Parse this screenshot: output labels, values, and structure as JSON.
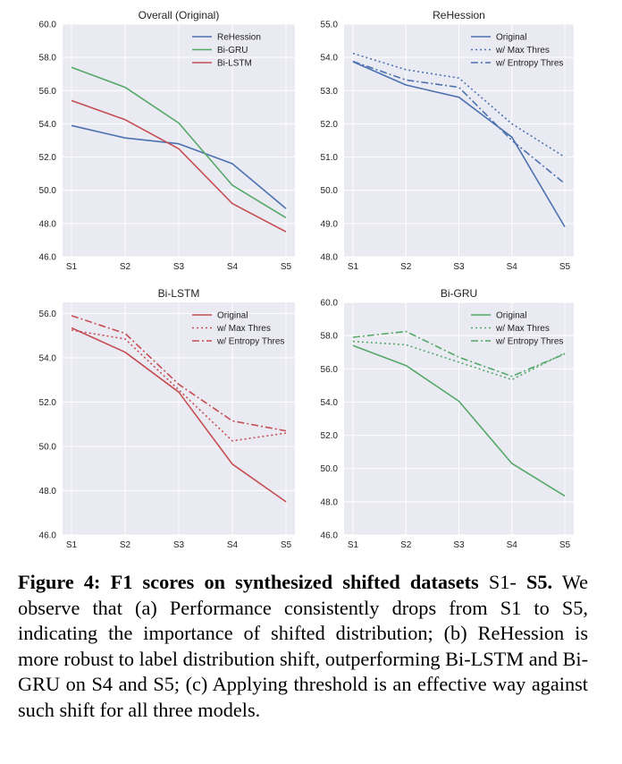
{
  "chart_data": [
    {
      "type": "line",
      "title": "Overall (Original)",
      "categories": [
        "S1",
        "S2",
        "S3",
        "S4",
        "S5"
      ],
      "ylim": [
        46.0,
        60.0
      ],
      "yticks": [
        "46.0",
        "48.0",
        "50.0",
        "52.0",
        "54.0",
        "56.0",
        "58.0",
        "60.0"
      ],
      "grid": true,
      "legend_position": "top-right",
      "series": [
        {
          "name": "ReHession",
          "color": "#4C72B0",
          "dash": "solid",
          "values": [
            53.9,
            53.15,
            52.8,
            51.6,
            48.9
          ]
        },
        {
          "name": "Bi-GRU",
          "color": "#55A868",
          "dash": "solid",
          "values": [
            57.4,
            56.2,
            54.05,
            50.3,
            48.35
          ]
        },
        {
          "name": "Bi-LSTM",
          "color": "#C44E52",
          "dash": "solid",
          "values": [
            55.4,
            54.25,
            52.5,
            49.2,
            47.5
          ]
        }
      ]
    },
    {
      "type": "line",
      "title": "ReHession",
      "categories": [
        "S1",
        "S2",
        "S3",
        "S4",
        "S5"
      ],
      "ylim": [
        48.0,
        55.0
      ],
      "yticks": [
        "48.0",
        "49.0",
        "50.0",
        "51.0",
        "52.0",
        "53.0",
        "54.0",
        "55.0"
      ],
      "grid": true,
      "legend_position": "top-right",
      "series": [
        {
          "name": "Original",
          "color": "#4C72B0",
          "dash": "solid",
          "values": [
            53.87,
            53.17,
            52.8,
            51.6,
            48.9
          ]
        },
        {
          "name": "w/ Max Thres",
          "color": "#4C72B0",
          "dash": "dotted",
          "values": [
            54.12,
            53.63,
            53.38,
            52.0,
            51.0
          ]
        },
        {
          "name": "w/ Entropy Thres",
          "color": "#4C72B0",
          "dash": "dashdot",
          "values": [
            53.88,
            53.32,
            53.1,
            51.5,
            50.2
          ]
        }
      ]
    },
    {
      "type": "line",
      "title": "Bi-LSTM",
      "categories": [
        "S1",
        "S2",
        "S3",
        "S4",
        "S5"
      ],
      "ylim": [
        46.0,
        56.5
      ],
      "yticks": [
        "46.0",
        "48.0",
        "50.0",
        "52.0",
        "54.0",
        "56.0"
      ],
      "grid": true,
      "legend_position": "top-right",
      "series": [
        {
          "name": "Original",
          "color": "#C44E52",
          "dash": "solid",
          "values": [
            55.35,
            54.25,
            52.45,
            49.2,
            47.5
          ]
        },
        {
          "name": "w/ Max Thres",
          "color": "#C44E52",
          "dash": "dotted",
          "values": [
            55.25,
            54.85,
            52.55,
            50.25,
            50.6
          ]
        },
        {
          "name": "w/ Entropy Thres",
          "color": "#C44E52",
          "dash": "dashdot",
          "values": [
            55.9,
            55.1,
            52.8,
            51.15,
            50.7
          ]
        }
      ]
    },
    {
      "type": "line",
      "title": "Bi-GRU",
      "categories": [
        "S1",
        "S2",
        "S3",
        "S4",
        "S5"
      ],
      "ylim": [
        46.0,
        60.0
      ],
      "yticks": [
        "46.0",
        "48.0",
        "50.0",
        "52.0",
        "54.0",
        "56.0",
        "58.0",
        "60.0"
      ],
      "grid": true,
      "legend_position": "top-right",
      "series": [
        {
          "name": "Original",
          "color": "#55A868",
          "dash": "solid",
          "values": [
            57.4,
            56.2,
            54.05,
            50.3,
            48.35
          ]
        },
        {
          "name": "w/ Max Thres",
          "color": "#55A868",
          "dash": "dotted",
          "values": [
            57.65,
            57.45,
            56.4,
            55.35,
            56.95
          ]
        },
        {
          "name": "w/ Entropy Thres",
          "color": "#55A868",
          "dash": "dashdot",
          "values": [
            57.9,
            58.25,
            56.7,
            55.55,
            56.9
          ]
        }
      ]
    }
  ],
  "caption": {
    "label": "Figure 4:",
    "title": "F1 scores on synthesized shifted datasets",
    "range_start": "S1-",
    "range_end": "S5.",
    "body": "We observe that (a) Performance consistently drops from S1 to S5, indicating the importance of shifted distribution; (b) ReHession is more robust to label distribution shift, outperforming Bi-LSTM and Bi-GRU on S4 and S5; (c) Applying threshold is an effective way against such shift for all three models."
  }
}
